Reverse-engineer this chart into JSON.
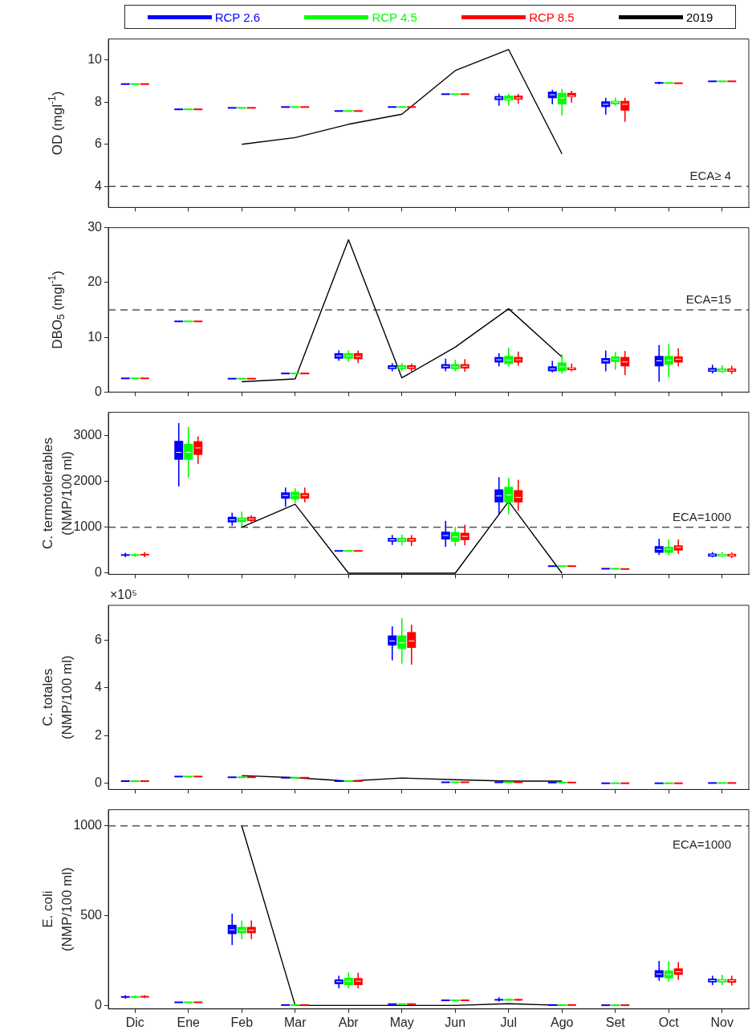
{
  "chart_data": [
    {
      "type": "box",
      "ylabel": "OD (mgl$^{-1}$)",
      "categories": [
        null,
        null,
        null,
        null,
        null,
        null,
        null,
        null,
        null,
        null,
        null,
        null
      ],
      "ylim": [
        3,
        11
      ],
      "yticks": [
        4,
        6,
        8,
        10
      ],
      "grid": false,
      "legend": "top",
      "tick_labels": "y",
      "marker": "none",
      "series": [
        {
          "name": "RCP 2.6",
          "color": "#0000ff",
          "boxes": [
            {
              "low": 8.86,
              "q1": 8.86,
              "median": 8.86,
              "q3": 8.86,
              "high": 8.86
            },
            {
              "low": 7.66,
              "q1": 7.66,
              "median": 7.66,
              "q3": 7.66,
              "high": 7.66
            },
            {
              "low": 7.73,
              "q1": 7.73,
              "median": 7.73,
              "q3": 7.73,
              "high": 7.73
            },
            {
              "low": 7.77,
              "q1": 7.77,
              "median": 7.77,
              "q3": 7.77,
              "high": 7.77
            },
            {
              "low": 7.58,
              "q1": 7.58,
              "median": 7.58,
              "q3": 7.58,
              "high": 7.58
            },
            {
              "low": 7.77,
              "q1": 7.77,
              "median": 7.77,
              "q3": 7.77,
              "high": 7.77
            },
            {
              "low": 8.38,
              "q1": 8.38,
              "median": 8.38,
              "q3": 8.38,
              "high": 8.38
            },
            {
              "low": 7.83,
              "q1": 8.1,
              "median": 8.2,
              "q3": 8.29,
              "high": 8.4
            },
            {
              "low": 7.9,
              "q1": 8.19,
              "median": 8.35,
              "q3": 8.5,
              "high": 8.59
            },
            {
              "low": 7.41,
              "q1": 7.77,
              "median": 7.9,
              "q3": 8.04,
              "high": 8.21
            },
            {
              "low": 8.85,
              "q1": 8.9,
              "median": 8.91,
              "q3": 8.93,
              "high": 8.97
            },
            {
              "low": 8.99,
              "q1": 8.99,
              "median": 8.99,
              "q3": 8.99,
              "high": 8.99
            }
          ]
        },
        {
          "name": "RCP 4.5",
          "color": "#00ff00",
          "boxes": [
            {
              "low": 8.86,
              "q1": 8.86,
              "median": 8.86,
              "q3": 8.86,
              "high": 8.86
            },
            {
              "low": 7.66,
              "q1": 7.66,
              "median": 7.66,
              "q3": 7.66,
              "high": 7.66
            },
            {
              "low": 7.73,
              "q1": 7.73,
              "median": 7.73,
              "q3": 7.73,
              "high": 7.73
            },
            {
              "low": 7.77,
              "q1": 7.77,
              "median": 7.77,
              "q3": 7.77,
              "high": 7.77
            },
            {
              "low": 7.58,
              "q1": 7.58,
              "median": 7.58,
              "q3": 7.58,
              "high": 7.58
            },
            {
              "low": 7.77,
              "q1": 7.77,
              "median": 7.77,
              "q3": 7.77,
              "high": 7.77
            },
            {
              "low": 8.38,
              "q1": 8.38,
              "median": 8.38,
              "q3": 8.38,
              "high": 8.38
            },
            {
              "low": 7.83,
              "q1": 8.08,
              "median": 8.15,
              "q3": 8.31,
              "high": 8.4
            },
            {
              "low": 7.37,
              "q1": 7.9,
              "median": 8.2,
              "q3": 8.44,
              "high": 8.63
            },
            {
              "low": 7.83,
              "q1": 7.9,
              "median": 8.0,
              "q3": 8.06,
              "high": 8.21
            },
            {
              "low": 8.91,
              "q1": 8.91,
              "median": 8.91,
              "q3": 8.91,
              "high": 8.91
            },
            {
              "low": 8.99,
              "q1": 8.99,
              "median": 8.99,
              "q3": 8.99,
              "high": 8.99
            }
          ]
        },
        {
          "name": "RCP 8.5",
          "color": "#ff0000",
          "boxes": [
            {
              "low": 8.86,
              "q1": 8.86,
              "median": 8.86,
              "q3": 8.86,
              "high": 8.86
            },
            {
              "low": 7.66,
              "q1": 7.66,
              "median": 7.66,
              "q3": 7.66,
              "high": 7.66
            },
            {
              "low": 7.73,
              "q1": 7.73,
              "median": 7.73,
              "q3": 7.73,
              "high": 7.73
            },
            {
              "low": 7.77,
              "q1": 7.77,
              "median": 7.77,
              "q3": 7.77,
              "high": 7.77
            },
            {
              "low": 7.58,
              "q1": 7.58,
              "median": 7.58,
              "q3": 7.58,
              "high": 7.58
            },
            {
              "low": 7.77,
              "q1": 7.77,
              "median": 7.77,
              "q3": 7.77,
              "high": 7.77
            },
            {
              "low": 8.38,
              "q1": 8.38,
              "median": 8.38,
              "q3": 8.38,
              "high": 8.38
            },
            {
              "low": 7.92,
              "q1": 8.12,
              "median": 8.2,
              "q3": 8.31,
              "high": 8.4
            },
            {
              "low": 7.98,
              "q1": 8.25,
              "median": 8.3,
              "q3": 8.44,
              "high": 8.54
            },
            {
              "low": 7.07,
              "q1": 7.6,
              "median": 7.9,
              "q3": 8.06,
              "high": 8.21
            },
            {
              "low": 8.9,
              "q1": 8.9,
              "median": 8.9,
              "q3": 8.9,
              "high": 8.9
            },
            {
              "low": 8.99,
              "q1": 8.99,
              "median": 8.99,
              "q3": 8.99,
              "high": 8.99
            }
          ]
        },
        {
          "name": "2019",
          "type": "line",
          "color": "#000000",
          "values": [
            null,
            null,
            6.0,
            6.32,
            6.95,
            7.43,
            9.5,
            10.5,
            5.54,
            null,
            null,
            null
          ]
        }
      ],
      "ref_lines": [
        {
          "axis": "y",
          "value": 4,
          "label": "ECA≥ 4",
          "line_style": "dashed"
        }
      ]
    },
    {
      "type": "box",
      "ylabel": "DBO$_{5}$ (mgl$^{-1}$)",
      "categories": [
        null,
        null,
        null,
        null,
        null,
        null,
        null,
        null,
        null,
        null,
        null,
        null
      ],
      "ylim": [
        0,
        30
      ],
      "yticks": [
        0,
        10,
        20,
        30
      ],
      "grid": false,
      "tick_labels": "y",
      "marker": "none",
      "series": [
        {
          "color": "#0000ff",
          "boxes": [
            {
              "low": 2.5,
              "q1": 2.5,
              "median": 2.5,
              "q3": 2.5,
              "high": 2.5
            },
            {
              "low": 12.9,
              "q1": 12.9,
              "median": 12.9,
              "q3": 12.9,
              "high": 12.9
            },
            {
              "low": 2.45,
              "q1": 2.45,
              "median": 2.45,
              "q3": 2.45,
              "high": 2.45
            },
            {
              "low": 3.4,
              "q1": 3.4,
              "median": 3.4,
              "q3": 3.4,
              "high": 3.4
            },
            {
              "low": 5.7,
              "q1": 6.1,
              "median": 6.6,
              "q3": 7.1,
              "high": 7.6
            },
            {
              "low": 3.8,
              "q1": 4.2,
              "median": 4.5,
              "q3": 4.9,
              "high": 5.3
            },
            {
              "low": 3.8,
              "q1": 4.3,
              "median": 4.7,
              "q3": 5.1,
              "high": 6.1
            },
            {
              "low": 4.7,
              "q1": 5.4,
              "median": 5.9,
              "q3": 6.4,
              "high": 7.1
            },
            {
              "low": 3.6,
              "q1": 3.8,
              "median": 4.2,
              "q3": 4.7,
              "high": 5.7
            },
            {
              "low": 3.8,
              "q1": 5.2,
              "median": 5.7,
              "q3": 6.2,
              "high": 7.6
            },
            {
              "low": 1.9,
              "q1": 4.7,
              "median": 5.7,
              "q3": 6.6,
              "high": 8.6
            },
            {
              "low": 3.4,
              "q1": 3.7,
              "median": 4.0,
              "q3": 4.4,
              "high": 5.0
            }
          ]
        },
        {
          "color": "#00ff00",
          "boxes": [
            {
              "low": 2.5,
              "q1": 2.5,
              "median": 2.5,
              "q3": 2.5,
              "high": 2.5
            },
            {
              "low": 12.9,
              "q1": 12.9,
              "median": 12.9,
              "q3": 12.9,
              "high": 12.9
            },
            {
              "low": 2.45,
              "q1": 2.45,
              "median": 2.45,
              "q3": 2.45,
              "high": 2.45
            },
            {
              "low": 3.4,
              "q1": 3.4,
              "median": 3.4,
              "q3": 3.4,
              "high": 3.4
            },
            {
              "low": 5.5,
              "q1": 6.1,
              "median": 6.6,
              "q3": 7.1,
              "high": 7.6
            },
            {
              "low": 3.8,
              "q1": 4.2,
              "median": 4.5,
              "q3": 4.9,
              "high": 5.3
            },
            {
              "low": 3.8,
              "q1": 4.2,
              "median": 4.6,
              "q3": 5.1,
              "high": 5.9
            },
            {
              "low": 4.7,
              "q1": 5.1,
              "median": 5.8,
              "q3": 6.6,
              "high": 8.1
            },
            {
              "low": 3.4,
              "q1": 3.8,
              "median": 4.6,
              "q3": 5.4,
              "high": 6.9
            },
            {
              "low": 4.1,
              "q1": 5.5,
              "median": 6.0,
              "q3": 6.5,
              "high": 7.3
            },
            {
              "low": 2.7,
              "q1": 5.0,
              "median": 5.8,
              "q3": 6.6,
              "high": 8.8
            },
            {
              "low": 3.5,
              "q1": 3.7,
              "median": 4.0,
              "q3": 4.3,
              "high": 4.9
            }
          ]
        },
        {
          "color": "#ff0000",
          "boxes": [
            {
              "low": 2.5,
              "q1": 2.5,
              "median": 2.5,
              "q3": 2.5,
              "high": 2.5
            },
            {
              "low": 12.9,
              "q1": 12.9,
              "median": 12.9,
              "q3": 12.9,
              "high": 12.9
            },
            {
              "low": 2.45,
              "q1": 2.45,
              "median": 2.45,
              "q3": 2.45,
              "high": 2.45
            },
            {
              "low": 3.4,
              "q1": 3.4,
              "median": 3.4,
              "q3": 3.4,
              "high": 3.4
            },
            {
              "low": 5.3,
              "q1": 6.0,
              "median": 6.5,
              "q3": 7.1,
              "high": 7.6
            },
            {
              "low": 3.8,
              "q1": 4.2,
              "median": 4.5,
              "q3": 4.9,
              "high": 5.2
            },
            {
              "low": 3.7,
              "q1": 4.3,
              "median": 4.7,
              "q3": 5.1,
              "high": 6.0
            },
            {
              "low": 4.8,
              "q1": 5.4,
              "median": 5.9,
              "q3": 6.4,
              "high": 7.4
            },
            {
              "low": 3.8,
              "q1": 4.0,
              "median": 4.3,
              "q3": 4.5,
              "high": 5.2
            },
            {
              "low": 3.1,
              "q1": 4.7,
              "median": 5.5,
              "q3": 6.4,
              "high": 7.5
            },
            {
              "low": 4.7,
              "q1": 5.4,
              "median": 6.0,
              "q3": 6.5,
              "high": 8.0
            },
            {
              "low": 3.3,
              "q1": 3.7,
              "median": 4.0,
              "q3": 4.3,
              "high": 4.8
            }
          ]
        },
        {
          "type": "line",
          "color": "#000000",
          "values": [
            null,
            null,
            1.9,
            2.4,
            27.8,
            2.6,
            8.2,
            15.2,
            6.4,
            null,
            null,
            null
          ]
        }
      ],
      "ref_lines": [
        {
          "axis": "y",
          "value": 15,
          "label": "ECA=15",
          "line_style": "dashed"
        }
      ]
    },
    {
      "type": "box",
      "ylabel": "C. termotolerables\n(NMP/100 ml)",
      "categories": [
        null,
        null,
        null,
        null,
        null,
        null,
        null,
        null,
        null,
        null,
        null,
        null
      ],
      "ylim": [
        -25,
        3500
      ],
      "yticks": [
        0,
        1000,
        2000,
        3000
      ],
      "grid": false,
      "tick_labels": "y",
      "marker": "none",
      "series": [
        {
          "color": "#0000ff",
          "boxes": [
            {
              "low": 347,
              "q1": 380,
              "median": 395,
              "q3": 410,
              "high": 444
            },
            {
              "low": 1887,
              "q1": 2468,
              "median": 2629,
              "q3": 2879,
              "high": 3266
            },
            {
              "low": 1032,
              "q1": 1105,
              "median": 1160,
              "q3": 1226,
              "high": 1315
            },
            {
              "low": 1444,
              "q1": 1621,
              "median": 1690,
              "q3": 1758,
              "high": 1863
            },
            {
              "low": 484,
              "q1": 484,
              "median": 484,
              "q3": 484,
              "high": 484
            },
            {
              "low": 613,
              "q1": 685,
              "median": 725,
              "q3": 766,
              "high": 831
            },
            {
              "low": 573,
              "q1": 734,
              "median": 820,
              "q3": 903,
              "high": 1137
            },
            {
              "low": 1282,
              "q1": 1540,
              "median": 1680,
              "q3": 1823,
              "high": 2089
            },
            {
              "low": 153,
              "q1": 153,
              "median": 153,
              "q3": 153,
              "high": 153
            },
            {
              "low": 97,
              "q1": 97,
              "median": 97,
              "q3": 97,
              "high": 97
            },
            {
              "low": 395,
              "q1": 444,
              "median": 520,
              "q3": 589,
              "high": 750
            },
            {
              "low": 347,
              "q1": 360,
              "median": 395,
              "q3": 427,
              "high": 460
            }
          ]
        },
        {
          "color": "#00ff00",
          "boxes": [
            {
              "low": 355,
              "q1": 380,
              "median": 395,
              "q3": 410,
              "high": 430
            },
            {
              "low": 2081,
              "q1": 2468,
              "median": 2629,
              "q3": 2815,
              "high": 3185
            },
            {
              "low": 1016,
              "q1": 1113,
              "median": 1170,
              "q3": 1210,
              "high": 1339
            },
            {
              "low": 1525,
              "q1": 1605,
              "median": 1690,
              "q3": 1774,
              "high": 1847
            },
            {
              "low": 484,
              "q1": 484,
              "median": 484,
              "q3": 484,
              "high": 484
            },
            {
              "low": 600,
              "q1": 680,
              "median": 720,
              "q3": 770,
              "high": 840
            },
            {
              "low": 589,
              "q1": 685,
              "median": 790,
              "q3": 895,
              "high": 1008
            },
            {
              "low": 1282,
              "q1": 1540,
              "median": 1700,
              "q3": 1879,
              "high": 2073
            },
            {
              "low": 153,
              "q1": 153,
              "median": 153,
              "q3": 153,
              "high": 153
            },
            {
              "low": 97,
              "q1": 97,
              "median": 97,
              "q3": 97,
              "high": 97
            },
            {
              "low": 395,
              "q1": 444,
              "median": 520,
              "q3": 573,
              "high": 734
            },
            {
              "low": 350,
              "q1": 365,
              "median": 395,
              "q3": 420,
              "high": 460
            }
          ]
        },
        {
          "color": "#ff0000",
          "boxes": [
            {
              "low": 350,
              "q1": 385,
              "median": 405,
              "q3": 420,
              "high": 460
            },
            {
              "low": 2379,
              "q1": 2573,
              "median": 2726,
              "q3": 2871,
              "high": 2976
            },
            {
              "low": 1105,
              "q1": 1137,
              "median": 1180,
              "q3": 1226,
              "high": 1258
            },
            {
              "low": 1541,
              "q1": 1621,
              "median": 1690,
              "q3": 1742,
              "high": 1863
            },
            {
              "low": 484,
              "q1": 484,
              "median": 484,
              "q3": 484,
              "high": 484
            },
            {
              "low": 590,
              "q1": 685,
              "median": 725,
              "q3": 766,
              "high": 830
            },
            {
              "low": 605,
              "q1": 718,
              "median": 800,
              "q3": 879,
              "high": 1056
            },
            {
              "low": 1363,
              "q1": 1540,
              "median": 1650,
              "q3": 1806,
              "high": 2032
            },
            {
              "low": 153,
              "q1": 153,
              "median": 153,
              "q3": 153,
              "high": 153
            },
            {
              "low": 90,
              "q1": 90,
              "median": 90,
              "q3": 90,
              "high": 90
            },
            {
              "low": 420,
              "q1": 492,
              "median": 560,
              "q3": 605,
              "high": 734
            },
            {
              "low": 330,
              "q1": 360,
              "median": 390,
              "q3": 420,
              "high": 450
            }
          ]
        },
        {
          "type": "line",
          "color": "#000000",
          "values": [
            null,
            null,
            1000,
            1500,
            0,
            0,
            0,
            1560,
            0,
            null,
            null,
            null
          ]
        }
      ],
      "ref_lines": [
        {
          "axis": "y",
          "value": 1000,
          "label": "ECA=1000",
          "line_style": "dashed"
        }
      ]
    },
    {
      "type": "box",
      "ylabel": "C. totales\n(NMP/100 ml)",
      "annotations": [
        "×10⁵"
      ],
      "categories": [
        null,
        null,
        null,
        null,
        null,
        null,
        null,
        null,
        null,
        null,
        null,
        null
      ],
      "ylim": [
        -0.25,
        7.45
      ],
      "yticks": [
        0,
        2,
        4,
        6
      ],
      "grid": false,
      "tick_labels": "y",
      "marker": "none",
      "series": [
        {
          "color": "#0000ff",
          "boxes": [
            {
              "low": 0.1,
              "q1": 0.1,
              "median": 0.1,
              "q3": 0.1,
              "high": 0.1
            },
            {
              "low": 0.29,
              "q1": 0.29,
              "median": 0.29,
              "q3": 0.29,
              "high": 0.29
            },
            {
              "low": 0.26,
              "q1": 0.26,
              "median": 0.26,
              "q3": 0.26,
              "high": 0.26
            },
            {
              "low": 0.24,
              "q1": 0.24,
              "median": 0.24,
              "q3": 0.24,
              "high": 0.24
            },
            {
              "low": 0.1,
              "q1": 0.1,
              "median": 0.1,
              "q3": 0.1,
              "high": 0.1
            },
            {
              "low": 5.15,
              "q1": 5.77,
              "median": 5.96,
              "q3": 6.19,
              "high": 6.57
            },
            {
              "low": 0.05,
              "q1": 0.05,
              "median": 0.05,
              "q3": 0.05,
              "high": 0.05
            },
            {
              "low": 0.05,
              "q1": 0.05,
              "median": 0.05,
              "q3": 0.05,
              "high": 0.05
            },
            {
              "low": 0.04,
              "q1": 0.04,
              "median": 0.04,
              "q3": 0.04,
              "high": 0.04
            },
            {
              "low": 0.01,
              "q1": 0.01,
              "median": 0.01,
              "q3": 0.01,
              "high": 0.01
            },
            {
              "low": 0.01,
              "q1": 0.01,
              "median": 0.01,
              "q3": 0.01,
              "high": 0.01
            },
            {
              "low": 0.02,
              "q1": 0.02,
              "median": 0.02,
              "q3": 0.02,
              "high": 0.02
            }
          ]
        },
        {
          "color": "#00ff00",
          "boxes": [
            {
              "low": 0.1,
              "q1": 0.1,
              "median": 0.1,
              "q3": 0.1,
              "high": 0.1
            },
            {
              "low": 0.29,
              "q1": 0.29,
              "median": 0.29,
              "q3": 0.29,
              "high": 0.29
            },
            {
              "low": 0.26,
              "q1": 0.26,
              "median": 0.26,
              "q3": 0.26,
              "high": 0.26
            },
            {
              "low": 0.24,
              "q1": 0.24,
              "median": 0.24,
              "q3": 0.24,
              "high": 0.24
            },
            {
              "low": 0.1,
              "q1": 0.1,
              "median": 0.1,
              "q3": 0.1,
              "high": 0.1
            },
            {
              "low": 5.01,
              "q1": 5.63,
              "median": 5.88,
              "q3": 6.19,
              "high": 6.92
            },
            {
              "low": 0.05,
              "q1": 0.05,
              "median": 0.05,
              "q3": 0.05,
              "high": 0.05
            },
            {
              "low": 0.05,
              "q1": 0.05,
              "median": 0.05,
              "q3": 0.05,
              "high": 0.05
            },
            {
              "low": 0.04,
              "q1": 0.04,
              "median": 0.04,
              "q3": 0.04,
              "high": 0.04
            },
            {
              "low": 0.01,
              "q1": 0.01,
              "median": 0.01,
              "q3": 0.01,
              "high": 0.01
            },
            {
              "low": 0.01,
              "q1": 0.01,
              "median": 0.01,
              "q3": 0.01,
              "high": 0.01
            },
            {
              "low": 0.02,
              "q1": 0.02,
              "median": 0.02,
              "q3": 0.02,
              "high": 0.02
            }
          ]
        },
        {
          "color": "#ff0000",
          "boxes": [
            {
              "low": 0.1,
              "q1": 0.1,
              "median": 0.1,
              "q3": 0.1,
              "high": 0.1
            },
            {
              "low": 0.29,
              "q1": 0.29,
              "median": 0.29,
              "q3": 0.29,
              "high": 0.29
            },
            {
              "low": 0.26,
              "q1": 0.26,
              "median": 0.26,
              "q3": 0.26,
              "high": 0.26
            },
            {
              "low": 0.24,
              "q1": 0.24,
              "median": 0.24,
              "q3": 0.24,
              "high": 0.24
            },
            {
              "low": 0.1,
              "q1": 0.1,
              "median": 0.1,
              "q3": 0.1,
              "high": 0.1
            },
            {
              "low": 4.97,
              "q1": 5.67,
              "median": 5.96,
              "q3": 6.33,
              "high": 6.64
            },
            {
              "low": 0.05,
              "q1": 0.05,
              "median": 0.05,
              "q3": 0.05,
              "high": 0.05
            },
            {
              "low": 0.05,
              "q1": 0.05,
              "median": 0.05,
              "q3": 0.05,
              "high": 0.05
            },
            {
              "low": 0.04,
              "q1": 0.04,
              "median": 0.04,
              "q3": 0.04,
              "high": 0.04
            },
            {
              "low": 0.01,
              "q1": 0.01,
              "median": 0.01,
              "q3": 0.01,
              "high": 0.01
            },
            {
              "low": 0.01,
              "q1": 0.01,
              "median": 0.01,
              "q3": 0.01,
              "high": 0.01
            },
            {
              "low": 0.02,
              "q1": 0.02,
              "median": 0.02,
              "q3": 0.02,
              "high": 0.02
            }
          ]
        },
        {
          "type": "line",
          "color": "#000000",
          "values": [
            null,
            null,
            0.33,
            0.24,
            0.1,
            0.23,
            0.16,
            0.1,
            0.1,
            null,
            null,
            null
          ]
        }
      ]
    },
    {
      "type": "box",
      "ylabel": "E. coli\n(NMP/100 ml)",
      "categories": [
        "Dic",
        "Ene",
        "Feb",
        "Mar",
        "Abr",
        "May",
        "Jun",
        "Jul",
        "Ago",
        "Set",
        "Oct",
        "Nov"
      ],
      "ylim": [
        -20,
        1090
      ],
      "yticks": [
        0,
        500,
        1000
      ],
      "grid": false,
      "marker": "none",
      "series": [
        {
          "color": "#0000ff",
          "boxes": [
            {
              "low": 37,
              "q1": 43,
              "median": 47,
              "q3": 51,
              "high": 57
            },
            {
              "low": 17,
              "q1": 17,
              "median": 17,
              "q3": 17,
              "high": 17
            },
            {
              "low": 336,
              "q1": 397,
              "median": 421,
              "q3": 449,
              "high": 511
            },
            {
              "low": 2,
              "q1": 2,
              "median": 2,
              "q3": 2,
              "high": 2
            },
            {
              "low": 95,
              "q1": 118,
              "median": 132,
              "q3": 144,
              "high": 165
            },
            {
              "low": 7,
              "q1": 7,
              "median": 7,
              "q3": 7,
              "high": 7
            },
            {
              "low": 28,
              "q1": 28,
              "median": 28,
              "q3": 28,
              "high": 28
            },
            {
              "low": 21,
              "q1": 27,
              "median": 31,
              "q3": 35,
              "high": 45
            },
            {
              "low": 2,
              "q1": 2,
              "median": 2,
              "q3": 2,
              "high": 2
            },
            {
              "low": 1,
              "q1": 1,
              "median": 1,
              "q3": 1,
              "high": 1
            },
            {
              "low": 137,
              "q1": 156,
              "median": 175,
              "q3": 196,
              "high": 248
            },
            {
              "low": 113,
              "q1": 128,
              "median": 138,
              "q3": 149,
              "high": 165
            }
          ]
        },
        {
          "color": "#00ff00",
          "boxes": [
            {
              "low": 40,
              "q1": 43,
              "median": 47,
              "q3": 51,
              "high": 55
            },
            {
              "low": 17,
              "q1": 17,
              "median": 17,
              "q3": 17,
              "high": 17
            },
            {
              "low": 369,
              "q1": 402,
              "median": 418,
              "q3": 437,
              "high": 473
            },
            {
              "low": 2,
              "q1": 2,
              "median": 2,
              "q3": 2,
              "high": 2
            },
            {
              "low": 95,
              "q1": 113,
              "median": 135,
              "q3": 154,
              "high": 184
            },
            {
              "low": 7,
              "q1": 7,
              "median": 7,
              "q3": 7,
              "high": 7
            },
            {
              "low": 28,
              "q1": 28,
              "median": 28,
              "q3": 28,
              "high": 28
            },
            {
              "low": 25,
              "q1": 28,
              "median": 31,
              "q3": 34,
              "high": 38
            },
            {
              "low": 2,
              "q1": 2,
              "median": 2,
              "q3": 2,
              "high": 2
            },
            {
              "low": 1,
              "q1": 1,
              "median": 1,
              "q3": 1,
              "high": 1
            },
            {
              "low": 132,
              "q1": 151,
              "median": 172,
              "q3": 194,
              "high": 246
            },
            {
              "low": 113,
              "q1": 128,
              "median": 138,
              "q3": 146,
              "high": 170
            }
          ]
        },
        {
          "color": "#ff0000",
          "boxes": [
            {
              "low": 40,
              "q1": 44,
              "median": 48,
              "q3": 52,
              "high": 57
            },
            {
              "low": 17,
              "q1": 17,
              "median": 17,
              "q3": 17,
              "high": 17
            },
            {
              "low": 369,
              "q1": 402,
              "median": 418,
              "q3": 437,
              "high": 473
            },
            {
              "low": 2,
              "q1": 2,
              "median": 2,
              "q3": 2,
              "high": 2
            },
            {
              "low": 95,
              "q1": 113,
              "median": 135,
              "q3": 152,
              "high": 182
            },
            {
              "low": 7,
              "q1": 7,
              "median": 7,
              "q3": 7,
              "high": 7
            },
            {
              "low": 28,
              "q1": 28,
              "median": 28,
              "q3": 28,
              "high": 28
            },
            {
              "low": 25,
              "q1": 28,
              "median": 31,
              "q3": 34,
              "high": 38
            },
            {
              "low": 2,
              "q1": 2,
              "median": 2,
              "q3": 2,
              "high": 2
            },
            {
              "low": 1,
              "q1": 1,
              "median": 1,
              "q3": 1,
              "high": 1
            },
            {
              "low": 142,
              "q1": 170,
              "median": 187,
              "q3": 206,
              "high": 241
            },
            {
              "low": 110,
              "q1": 126,
              "median": 137,
              "q3": 146,
              "high": 165
            }
          ]
        },
        {
          "type": "line",
          "color": "#000000",
          "values": [
            null,
            null,
            1000,
            0,
            0,
            0,
            0,
            9,
            0,
            null,
            null,
            null
          ]
        }
      ],
      "ref_lines": [
        {
          "axis": "y",
          "value": 1000,
          "label": "ECA=1000",
          "line_style": "dashed"
        }
      ]
    }
  ]
}
